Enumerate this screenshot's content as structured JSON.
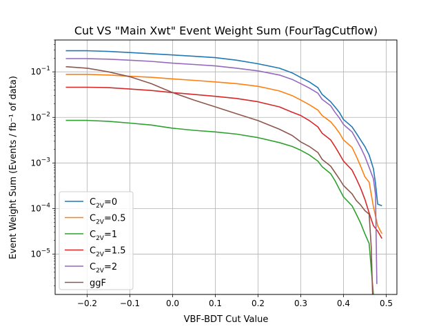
{
  "chart_data": {
    "type": "line",
    "title": "Cut VS \"Main Xwt\" Event Weight Sum (FourTagCutflow)",
    "xlabel": "VBF-BDT Cut Value",
    "ylabel": "Event Weight Sum (Events / fb⁻¹ of data)",
    "y_scale": "log",
    "xlim": [
      -0.275,
      0.525
    ],
    "ylim": [
      1.3e-06,
      0.5
    ],
    "grid": true,
    "legend_position": "lower-left",
    "x_ticks": [
      -0.2,
      -0.1,
      0.0,
      0.1,
      0.2,
      0.3,
      0.4,
      0.5
    ],
    "x_tick_labels": [
      "−0.2",
      "−0.1",
      "0.0",
      "0.1",
      "0.2",
      "0.3",
      "0.4",
      "0.5"
    ],
    "y_ticks": [
      1e-05,
      0.0001,
      0.001,
      0.01,
      0.1
    ],
    "y_tick_labels": [
      {
        "base": "10",
        "exp": "−5"
      },
      {
        "base": "10",
        "exp": "−4"
      },
      {
        "base": "10",
        "exp": "−3"
      },
      {
        "base": "10",
        "exp": "−2"
      },
      {
        "base": "10",
        "exp": "−1"
      }
    ],
    "series": [
      {
        "name": "C2V=0",
        "label_main": "C",
        "label_sub": "2V",
        "label_rest": "=0",
        "color": "#1f77b4",
        "points": [
          [
            -0.25,
            0.29
          ],
          [
            -0.2,
            0.29
          ],
          [
            -0.15,
            0.28
          ],
          [
            -0.1,
            0.265
          ],
          [
            -0.05,
            0.25
          ],
          [
            0.0,
            0.235
          ],
          [
            0.05,
            0.22
          ],
          [
            0.1,
            0.205
          ],
          [
            0.15,
            0.18
          ],
          [
            0.2,
            0.15
          ],
          [
            0.25,
            0.12
          ],
          [
            0.28,
            0.095
          ],
          [
            0.3,
            0.075
          ],
          [
            0.32,
            0.06
          ],
          [
            0.34,
            0.045
          ],
          [
            0.35,
            0.032
          ],
          [
            0.37,
            0.022
          ],
          [
            0.38,
            0.017
          ],
          [
            0.39,
            0.013
          ],
          [
            0.4,
            0.009
          ],
          [
            0.42,
            0.0062
          ],
          [
            0.43,
            0.0045
          ],
          [
            0.44,
            0.0032
          ],
          [
            0.45,
            0.0023
          ],
          [
            0.46,
            0.0015
          ],
          [
            0.47,
            0.00075
          ],
          [
            0.475,
            0.00035
          ],
          [
            0.48,
            0.000125
          ],
          [
            0.49,
            0.000115
          ]
        ]
      },
      {
        "name": "C2V=0.5",
        "label_main": "C",
        "label_sub": "2V",
        "label_rest": "=0.5",
        "color": "#ff7f0e",
        "points": [
          [
            -0.25,
            0.088
          ],
          [
            -0.2,
            0.088
          ],
          [
            -0.15,
            0.085
          ],
          [
            -0.1,
            0.08
          ],
          [
            -0.05,
            0.076
          ],
          [
            0.0,
            0.07
          ],
          [
            0.05,
            0.065
          ],
          [
            0.1,
            0.06
          ],
          [
            0.15,
            0.055
          ],
          [
            0.2,
            0.048
          ],
          [
            0.25,
            0.038
          ],
          [
            0.28,
            0.03
          ],
          [
            0.3,
            0.024
          ],
          [
            0.32,
            0.019
          ],
          [
            0.34,
            0.0145
          ],
          [
            0.35,
            0.011
          ],
          [
            0.37,
            0.008
          ],
          [
            0.38,
            0.0062
          ],
          [
            0.39,
            0.0046
          ],
          [
            0.4,
            0.0032
          ],
          [
            0.42,
            0.0022
          ],
          [
            0.43,
            0.0014
          ],
          [
            0.44,
            0.00085
          ],
          [
            0.45,
            0.0005
          ],
          [
            0.46,
            0.00038
          ],
          [
            0.47,
            0.00011
          ],
          [
            0.48,
            4.2e-05
          ],
          [
            0.49,
            2.8e-05
          ]
        ]
      },
      {
        "name": "C2V=1",
        "label_main": "C",
        "label_sub": "2V",
        "label_rest": "=1",
        "color": "#2ca02c",
        "points": [
          [
            -0.25,
            0.0086
          ],
          [
            -0.2,
            0.0086
          ],
          [
            -0.15,
            0.0082
          ],
          [
            -0.1,
            0.0075
          ],
          [
            -0.05,
            0.0068
          ],
          [
            0.0,
            0.0058
          ],
          [
            0.05,
            0.0052
          ],
          [
            0.1,
            0.0048
          ],
          [
            0.15,
            0.0043
          ],
          [
            0.2,
            0.0036
          ],
          [
            0.25,
            0.0028
          ],
          [
            0.28,
            0.0023
          ],
          [
            0.3,
            0.0019
          ],
          [
            0.32,
            0.0015
          ],
          [
            0.34,
            0.0011
          ],
          [
            0.35,
            0.00083
          ],
          [
            0.37,
            0.00058
          ],
          [
            0.38,
            0.00041
          ],
          [
            0.39,
            0.00027
          ],
          [
            0.4,
            0.00018
          ],
          [
            0.42,
            0.000115
          ],
          [
            0.43,
            7.5e-05
          ],
          [
            0.44,
            4.8e-05
          ],
          [
            0.45,
            2.8e-05
          ],
          [
            0.46,
            1.7e-05
          ],
          [
            0.47,
            1.3e-06
          ]
        ]
      },
      {
        "name": "C2V=1.5",
        "label_main": "C",
        "label_sub": "2V",
        "label_rest": "=1.5",
        "color": "#d62728",
        "points": [
          [
            -0.25,
            0.046
          ],
          [
            -0.2,
            0.046
          ],
          [
            -0.15,
            0.045
          ],
          [
            -0.1,
            0.042
          ],
          [
            -0.05,
            0.039
          ],
          [
            0.0,
            0.035
          ],
          [
            0.05,
            0.032
          ],
          [
            0.1,
            0.029
          ],
          [
            0.15,
            0.026
          ],
          [
            0.2,
            0.022
          ],
          [
            0.25,
            0.017
          ],
          [
            0.28,
            0.013
          ],
          [
            0.3,
            0.011
          ],
          [
            0.32,
            0.0085
          ],
          [
            0.34,
            0.0062
          ],
          [
            0.35,
            0.0045
          ],
          [
            0.37,
            0.0032
          ],
          [
            0.38,
            0.0023
          ],
          [
            0.39,
            0.0016
          ],
          [
            0.4,
            0.0011
          ],
          [
            0.42,
            0.0007
          ],
          [
            0.43,
            0.00045
          ],
          [
            0.44,
            0.00028
          ],
          [
            0.45,
            0.00016
          ],
          [
            0.46,
            8e-05
          ],
          [
            0.47,
            4.2e-05
          ],
          [
            0.48,
            3.2e-05
          ],
          [
            0.49,
            2.2e-05
          ]
        ]
      },
      {
        "name": "C2V=2",
        "label_main": "C",
        "label_sub": "2V",
        "label_rest": "=2",
        "color": "#9467bd",
        "points": [
          [
            -0.25,
            0.195
          ],
          [
            -0.2,
            0.195
          ],
          [
            -0.15,
            0.19
          ],
          [
            -0.1,
            0.18
          ],
          [
            -0.05,
            0.17
          ],
          [
            0.0,
            0.155
          ],
          [
            0.05,
            0.145
          ],
          [
            0.1,
            0.135
          ],
          [
            0.15,
            0.12
          ],
          [
            0.2,
            0.105
          ],
          [
            0.25,
            0.085
          ],
          [
            0.28,
            0.068
          ],
          [
            0.3,
            0.055
          ],
          [
            0.32,
            0.044
          ],
          [
            0.34,
            0.034
          ],
          [
            0.35,
            0.025
          ],
          [
            0.37,
            0.018
          ],
          [
            0.38,
            0.013
          ],
          [
            0.39,
            0.0098
          ],
          [
            0.4,
            0.007
          ],
          [
            0.42,
            0.0048
          ],
          [
            0.43,
            0.0033
          ],
          [
            0.44,
            0.0022
          ],
          [
            0.45,
            0.0014
          ],
          [
            0.46,
            0.0008
          ],
          [
            0.47,
            0.00045
          ],
          [
            0.475,
            0.0002
          ],
          [
            0.478,
            2.2e-06
          ]
        ]
      },
      {
        "name": "ggF",
        "label_main": "ggF",
        "label_sub": "",
        "label_rest": "",
        "color": "#8c564b",
        "points": [
          [
            -0.25,
            0.13
          ],
          [
            -0.2,
            0.12
          ],
          [
            -0.15,
            0.1
          ],
          [
            -0.1,
            0.078
          ],
          [
            -0.05,
            0.055
          ],
          [
            0.0,
            0.035
          ],
          [
            0.05,
            0.024
          ],
          [
            0.1,
            0.017
          ],
          [
            0.15,
            0.012
          ],
          [
            0.2,
            0.0085
          ],
          [
            0.25,
            0.0055
          ],
          [
            0.28,
            0.004
          ],
          [
            0.3,
            0.0029
          ],
          [
            0.32,
            0.0023
          ],
          [
            0.34,
            0.0017
          ],
          [
            0.35,
            0.0012
          ],
          [
            0.37,
            0.00085
          ],
          [
            0.38,
            0.00062
          ],
          [
            0.39,
            0.00045
          ],
          [
            0.4,
            0.00032
          ],
          [
            0.42,
            0.00021
          ],
          [
            0.43,
            0.00015
          ],
          [
            0.44,
            0.00012
          ],
          [
            0.45,
            9e-05
          ],
          [
            0.46,
            7.5e-05
          ],
          [
            0.465,
            1.4e-05
          ],
          [
            0.468,
            1.3e-06
          ]
        ]
      }
    ]
  }
}
